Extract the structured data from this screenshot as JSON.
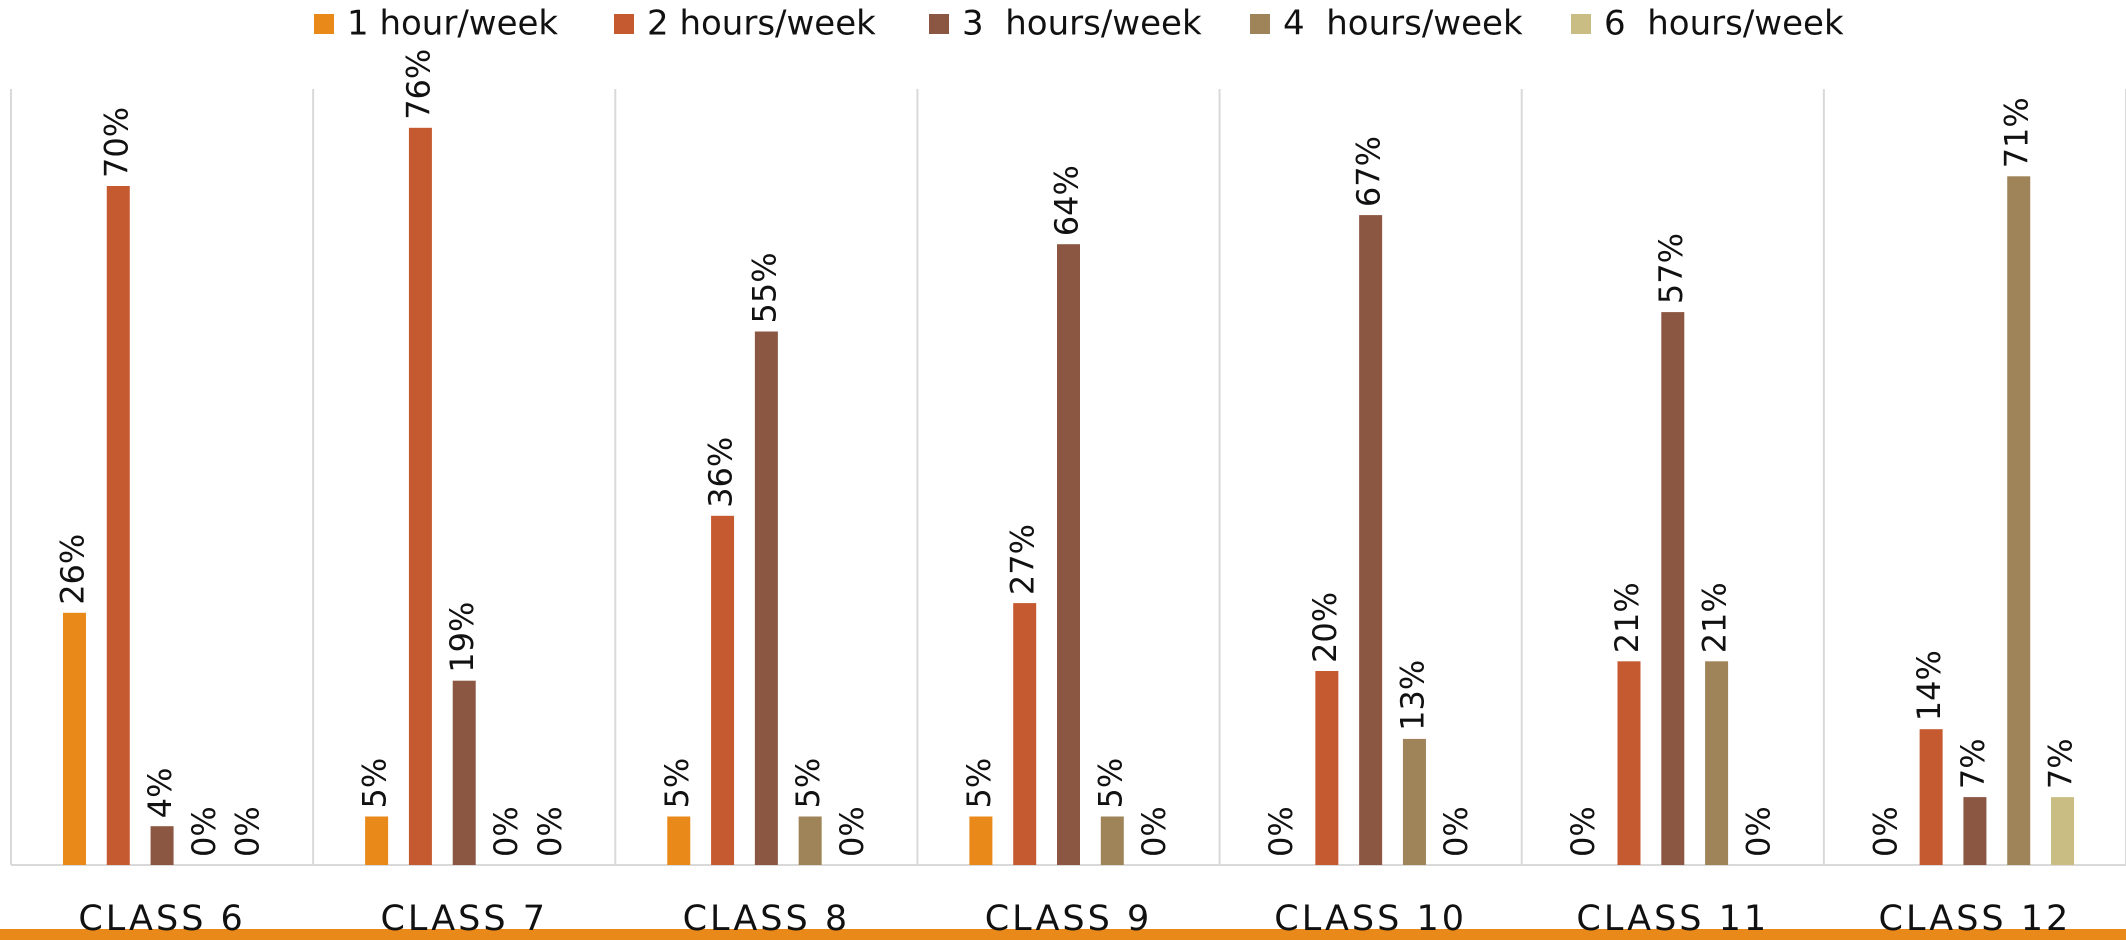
{
  "chart_data": {
    "type": "bar",
    "categories": [
      "CLASS 6",
      "CLASS 7",
      "CLASS 8",
      "CLASS 9",
      "CLASS 10",
      "CLASS 11",
      "CLASS 12"
    ],
    "series": [
      {
        "name": "1 hour/week",
        "color": "#E8891A",
        "values": [
          26,
          5,
          5,
          5,
          0,
          0,
          0
        ],
        "value_labels": [
          "26%",
          "5%",
          "5%",
          "5%",
          "0%",
          "0%",
          "0%"
        ]
      },
      {
        "name": "2 hours/week",
        "color": "#C55A30",
        "values": [
          70,
          76,
          36,
          27,
          20,
          21,
          14
        ],
        "value_labels": [
          "70%",
          "76%",
          "36%",
          "27%",
          "20%",
          "21%",
          "14%"
        ]
      },
      {
        "name": "3  hours/week",
        "color": "#8B5742",
        "values": [
          4,
          19,
          55,
          64,
          67,
          57,
          7
        ],
        "value_labels": [
          "4%",
          "19%",
          "55%",
          "64%",
          "67%",
          "57%",
          "7%"
        ]
      },
      {
        "name": "4  hours/week",
        "color": "#9E8458",
        "values": [
          0,
          0,
          5,
          5,
          13,
          21,
          71
        ],
        "value_labels": [
          "0%",
          "0%",
          "5%",
          "5%",
          "13%",
          "21%",
          "71%"
        ]
      },
      {
        "name": "6  hours/week",
        "color": "#C9BD84",
        "values": [
          0,
          0,
          0,
          0,
          0,
          0,
          7
        ],
        "value_labels": [
          "0%",
          "0%",
          "0%",
          "0%",
          "0%",
          "0%",
          "7%"
        ]
      }
    ],
    "ylim": [
      0,
      80
    ],
    "legend": "top"
  }
}
